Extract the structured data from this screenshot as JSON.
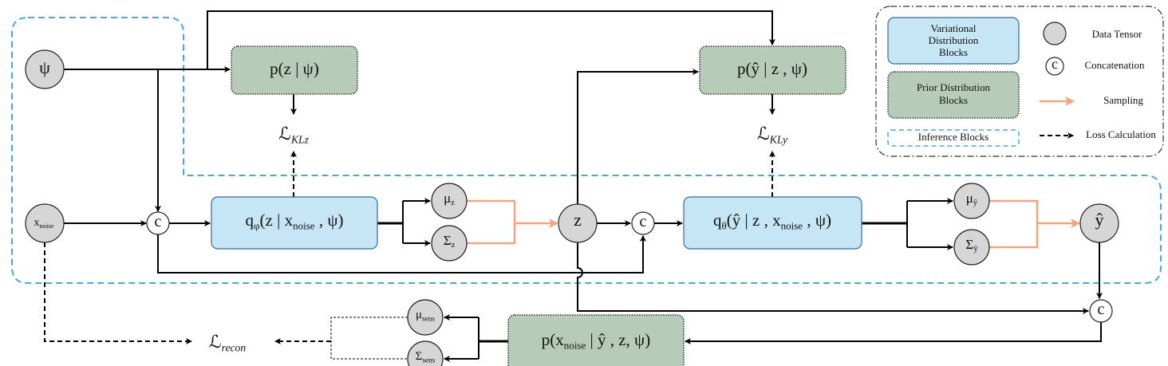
{
  "nodes": {
    "psi": [
      "ψ"
    ],
    "x_noise": [
      "x",
      {
        "sub": "noise"
      }
    ],
    "concat_1": [
      "c"
    ],
    "concat_2": [
      "c"
    ],
    "concat_3": [
      "c"
    ],
    "mu_z": [
      "μ",
      {
        "sub": "z"
      }
    ],
    "sigma_z": [
      "Σ",
      {
        "sub": "z"
      }
    ],
    "z": [
      "z"
    ],
    "mu_y": [
      "μ",
      {
        "sub": "ŷ"
      }
    ],
    "sigma_y": [
      "Σ",
      {
        "sub": "ŷ"
      }
    ],
    "y_hat": [
      "ŷ"
    ],
    "mu_sens": [
      "μ",
      {
        "sub": "sens"
      }
    ],
    "sigma_sens": [
      "Σ",
      {
        "sub": "sens"
      }
    ]
  },
  "blocks": {
    "prior_z": [
      "p(z | ψ)"
    ],
    "prior_y": [
      "p(ŷ | z , ψ)"
    ],
    "posterior_z": [
      "q",
      {
        "sub": "φ"
      },
      "(z |  x",
      {
        "sub": "noise"
      },
      "  , ψ)"
    ],
    "posterior_y": [
      "q",
      {
        "sub": "θ"
      },
      "(ŷ | z , x",
      {
        "sub": "noise"
      },
      " , ψ)"
    ],
    "decoder": [
      "p(x",
      {
        "sub": "noise"
      },
      " | ŷ , z, ψ)"
    ]
  },
  "losses": {
    "kl_z": [
      "ℒ",
      {
        "sub": "KLz"
      }
    ],
    "kl_y": [
      "ℒ",
      {
        "sub": "KLy"
      }
    ],
    "recon": [
      "ℒ",
      {
        "sub": "recon"
      }
    ]
  },
  "legend": {
    "variational": [
      "Variational",
      "Distribution",
      "Blocks"
    ],
    "prior": [
      "Prior Distribution",
      "Blocks"
    ],
    "inference": "Inference Blocks",
    "data_tensor": "Data Tensor",
    "concat_symbol": "c",
    "concatenation": "Concatenation",
    "sampling": "Sampling",
    "loss": "Loss Calculation"
  }
}
